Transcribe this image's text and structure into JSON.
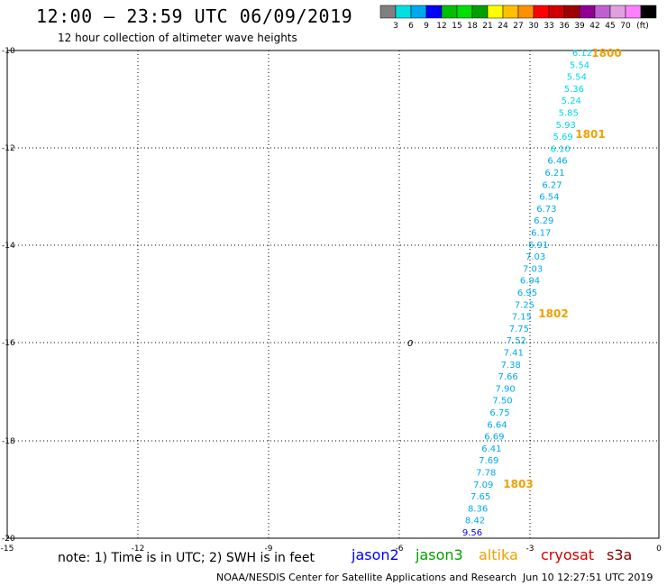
{
  "title": "12:00 – 23:59 UTC 06/09/2019",
  "subtitle": "12 hour collection of altimeter wave heights",
  "legend": {
    "colors": [
      "#808080",
      "#00e0e0",
      "#00a8f0",
      "#0000ff",
      "#00c000",
      "#00e000",
      "#00a000",
      "#ffff00",
      "#ffc000",
      "#ff9000",
      "#ff0000",
      "#d00000",
      "#a00000",
      "#900090",
      "#c060d0",
      "#e0a0e0",
      "#ff80ff",
      "#000000"
    ],
    "labels": [
      "3",
      "6",
      "9",
      "12",
      "15",
      "18",
      "21",
      "24",
      "27",
      "30",
      "33",
      "36",
      "39",
      "42",
      "45",
      "70"
    ],
    "unit": "(ft)"
  },
  "axes": {
    "y_ticks": [
      "-10",
      "-12",
      "-14",
      "-16",
      "-18",
      "-20"
    ],
    "x_ticks": [
      "-15",
      "-12",
      "-9",
      "-6",
      "-3",
      "0"
    ]
  },
  "observations": [
    {
      "v": "6.12",
      "c": "#00d8e8"
    },
    {
      "v": "5.54",
      "c": "#00d8e8"
    },
    {
      "v": "5.54",
      "c": "#00d8e8"
    },
    {
      "v": "5.36",
      "c": "#00d8e8"
    },
    {
      "v": "5.24",
      "c": "#00d8e8"
    },
    {
      "v": "5.85",
      "c": "#00d8e8"
    },
    {
      "v": "5.93",
      "c": "#00d8e8"
    },
    {
      "v": "5.69",
      "c": "#00d8e8"
    },
    {
      "v": "6.10",
      "c": "#00d8e8"
    },
    {
      "v": "6.46",
      "c": "#00a8f0"
    },
    {
      "v": "6.21",
      "c": "#00a8f0"
    },
    {
      "v": "6.27",
      "c": "#00a8f0"
    },
    {
      "v": "6.54",
      "c": "#00a8f0"
    },
    {
      "v": "6.73",
      "c": "#00a8f0"
    },
    {
      "v": "6.29",
      "c": "#00a8f0"
    },
    {
      "v": "6.17",
      "c": "#00a8f0"
    },
    {
      "v": "6.91",
      "c": "#00a8f0"
    },
    {
      "v": "7.03",
      "c": "#00a8f0"
    },
    {
      "v": "7.03",
      "c": "#00a8f0"
    },
    {
      "v": "6.94",
      "c": "#00a8f0"
    },
    {
      "v": "6.95",
      "c": "#00a8f0"
    },
    {
      "v": "7.25",
      "c": "#00a8f0"
    },
    {
      "v": "7.15",
      "c": "#00a8f0"
    },
    {
      "v": "7.75",
      "c": "#00a8f0"
    },
    {
      "v": "7.52",
      "c": "#00a8f0"
    },
    {
      "v": "7.41",
      "c": "#00a8f0"
    },
    {
      "v": "7.38",
      "c": "#00a8f0"
    },
    {
      "v": "7.66",
      "c": "#00a8f0"
    },
    {
      "v": "7.90",
      "c": "#00a8f0"
    },
    {
      "v": "7.50",
      "c": "#00a8f0"
    },
    {
      "v": "6.75",
      "c": "#00a8f0"
    },
    {
      "v": "6.64",
      "c": "#00a8f0"
    },
    {
      "v": "6.69",
      "c": "#00a8f0"
    },
    {
      "v": "6.41",
      "c": "#00a8f0"
    },
    {
      "v": "7.69",
      "c": "#00a8f0"
    },
    {
      "v": "7.78",
      "c": "#00a8f0"
    },
    {
      "v": "7.09",
      "c": "#00a8f0"
    },
    {
      "v": "7.65",
      "c": "#00a8f0"
    },
    {
      "v": "8.36",
      "c": "#00a8f0"
    },
    {
      "v": "8.42",
      "c": "#00a8f0"
    },
    {
      "v": "9.56",
      "c": "#0000ff"
    }
  ],
  "time_labels": [
    "1800",
    "1801",
    "1802",
    "1803"
  ],
  "time_label_color": "#f0a000",
  "island_label": "0",
  "note": "note: 1) Time is in UTC; 2) SWH is in feet",
  "satellites": [
    {
      "name": "jason2",
      "color": "#0000ff"
    },
    {
      "name": "jason3",
      "color": "#00a000"
    },
    {
      "name": "altika",
      "color": "#f0a000"
    },
    {
      "name": "cryosat",
      "color": "#d00000"
    },
    {
      "name": "s3a",
      "color": "#800000"
    }
  ],
  "credit": "NOAA/NESDIS Center for Satellite Applications and Research",
  "timestamp": "Jun 10 12:27:51 UTC 2019"
}
